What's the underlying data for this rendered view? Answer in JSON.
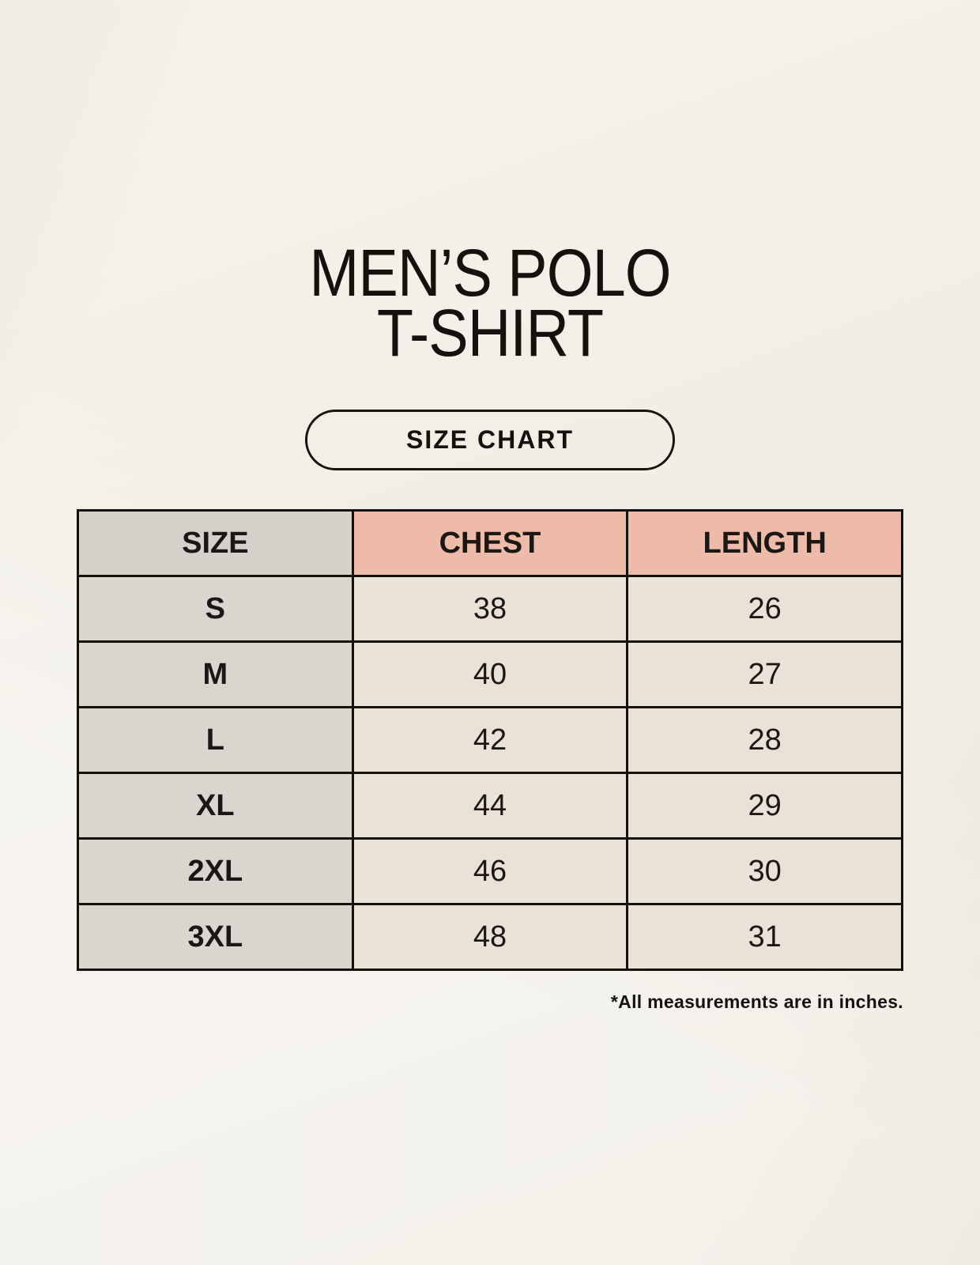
{
  "page": {
    "title_line1": "MEN’S POLO",
    "title_line2": "T-SHIRT",
    "badge_label": "SIZE CHART",
    "footnote": "*All measurements are in inches."
  },
  "colors": {
    "background": "#f1eee6",
    "accent_salmon": "#eebbaa",
    "size_column_gray": "#dbd5cf",
    "data_cell_cream": "#e9e2d7",
    "border_black": "#141109",
    "text": "#15120e"
  },
  "chart_data": {
    "type": "table",
    "title": "MEN’S POLO T-SHIRT SIZE CHART",
    "units": "inches",
    "headers": [
      "SIZE",
      "CHEST",
      "LENGTH"
    ],
    "rows": [
      {
        "size": "S",
        "chest": "38",
        "length": "26"
      },
      {
        "size": "M",
        "chest": "40",
        "length": "27"
      },
      {
        "size": "L",
        "chest": "42",
        "length": "28"
      },
      {
        "size": "XL",
        "chest": "44",
        "length": "29"
      },
      {
        "size": "2XL",
        "chest": "46",
        "length": "30"
      },
      {
        "size": "3XL",
        "chest": "48",
        "length": "31"
      }
    ]
  }
}
